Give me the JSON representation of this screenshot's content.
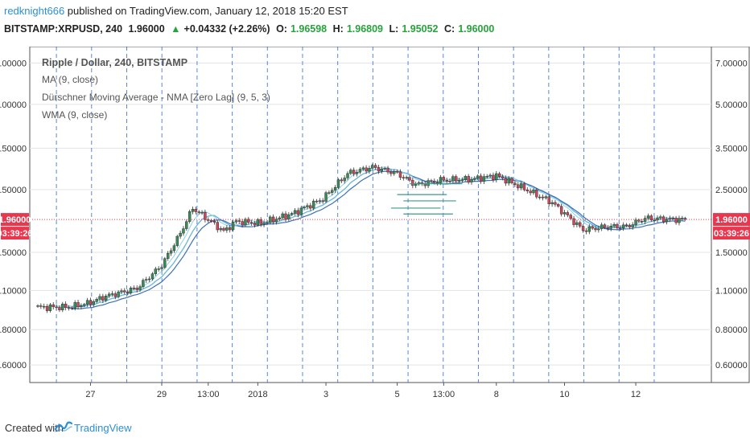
{
  "header": {
    "author": "redknight666",
    "published_text": "published on TradingView.com, January 12, 2018 15:20 EST",
    "symbol": "BITSTAMP:XRPUSD, 240",
    "last": "1.96000",
    "change": "+0.04332 (+2.26%)",
    "open_label": "O:",
    "open": "1.96598",
    "high_label": "H:",
    "high": "1.96809",
    "low_label": "L:",
    "low": "1.95052",
    "close_label": "C:",
    "close": "1.96000"
  },
  "legend": {
    "title": "Ripple / Dollar, 240, BITSTAMP",
    "indicators": [
      "MA (9, close)",
      "Dürschner Moving Average - NMA [Zero Lag] (9, 5, 3)",
      "WMA (9, close)"
    ]
  },
  "price_tag": {
    "price": "1.96000",
    "countdown": "03:39:26"
  },
  "footer": {
    "created_with": "Created with",
    "brand": "TradingView"
  },
  "colors": {
    "up": "#3a8a5a",
    "down": "#c9485b",
    "ma": "#66b6d8",
    "wma": "#3f6fb5",
    "grid_v": "#3b73d1",
    "price_line": "#e8384f"
  },
  "chart_data": {
    "type": "candlestick",
    "title": "Ripple / Dollar, 240, BITSTAMP",
    "y_scale": "log",
    "y_ticks": [
      "7.00000",
      "5.00000",
      "3.50000",
      "2.50000",
      "1.50000",
      "1.10000",
      "0.80000",
      "0.60000"
    ],
    "y_tick_values": [
      7.0,
      5.0,
      3.5,
      2.5,
      1.5,
      1.1,
      0.8,
      0.6
    ],
    "ylim": [
      0.52,
      8.0
    ],
    "x_ticks": [
      "27",
      "29",
      "13:00",
      "2018",
      "3",
      "5",
      "13:00",
      "8",
      "10",
      "12"
    ],
    "x_tick_index": [
      17,
      40,
      55,
      71,
      93,
      116,
      131,
      148,
      170,
      193
    ],
    "n_bars": 210,
    "close_anchors": [
      [
        0,
        0.96
      ],
      [
        10,
        0.96
      ],
      [
        16,
        0.99
      ],
      [
        22,
        1.05
      ],
      [
        32,
        1.12
      ],
      [
        40,
        1.35
      ],
      [
        46,
        1.75
      ],
      [
        50,
        2.15
      ],
      [
        56,
        1.92
      ],
      [
        60,
        1.78
      ],
      [
        64,
        1.93
      ],
      [
        72,
        1.9
      ],
      [
        82,
        2.05
      ],
      [
        92,
        2.32
      ],
      [
        100,
        2.85
      ],
      [
        108,
        3.0
      ],
      [
        116,
        2.85
      ],
      [
        122,
        2.6
      ],
      [
        130,
        2.7
      ],
      [
        140,
        2.72
      ],
      [
        148,
        2.8
      ],
      [
        156,
        2.55
      ],
      [
        166,
        2.25
      ],
      [
        176,
        1.8
      ],
      [
        184,
        1.85
      ],
      [
        190,
        1.85
      ],
      [
        196,
        1.98
      ],
      [
        204,
        1.96
      ],
      [
        209,
        1.96
      ]
    ],
    "price_line": 1.96,
    "grid": true
  }
}
